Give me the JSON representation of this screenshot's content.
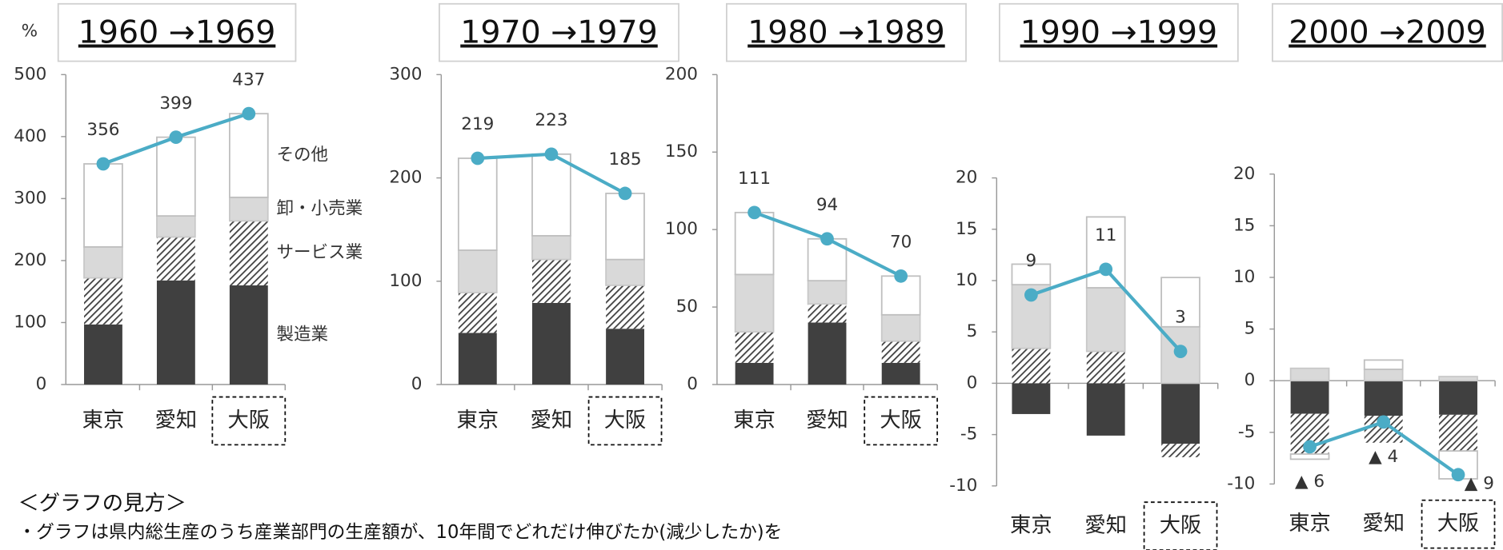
{
  "unit_label": "%",
  "notes": {
    "heading": "＜グラフの見方＞",
    "text": "・グラフは県内総生産のうち産業部門の生産額が、10年間でどれだけ伸びたか(減少したか)を"
  },
  "chart_data": [
    {
      "type": "stacked-bar-line",
      "title": "1960 →1969",
      "categories": [
        "東京",
        "愛知",
        "大阪"
      ],
      "highlight": 2,
      "ylim": [
        0,
        500
      ],
      "yticks": [
        0,
        100,
        200,
        300,
        400,
        500
      ],
      "series": [
        {
          "name": "製造業",
          "color": "#404040",
          "values": [
            97,
            168,
            160
          ]
        },
        {
          "name": "サービス業",
          "color": "#404040",
          "pattern": "hatch",
          "values": [
            75,
            70,
            104
          ]
        },
        {
          "name": "卸・小売業",
          "color": "#d9d9d9",
          "values": [
            50,
            34,
            38
          ]
        },
        {
          "name": "その他",
          "color": "#ffffff",
          "values": [
            134,
            127,
            135
          ]
        }
      ],
      "line": {
        "color": "#4bacc6",
        "values": [
          356,
          399,
          437
        ]
      }
    },
    {
      "type": "stacked-bar-line",
      "title": "1970 →1979",
      "categories": [
        "東京",
        "愛知",
        "大阪"
      ],
      "highlight": 2,
      "ylim": [
        0,
        300
      ],
      "yticks": [
        0,
        100,
        200,
        300
      ],
      "series": [
        {
          "color": "#404040",
          "values": [
            50,
            79,
            54
          ]
        },
        {
          "color": "#404040",
          "pattern": "hatch",
          "values": [
            39,
            42,
            42
          ]
        },
        {
          "color": "#d9d9d9",
          "values": [
            41,
            23,
            25
          ]
        },
        {
          "color": "#ffffff",
          "values": [
            89,
            79,
            64
          ]
        }
      ],
      "line": {
        "color": "#4bacc6",
        "values": [
          219,
          223,
          185
        ]
      }
    },
    {
      "type": "stacked-bar-line",
      "title": "1980 →1989",
      "categories": [
        "東京",
        "愛知",
        "大阪"
      ],
      "highlight": 2,
      "ylim": [
        0,
        200
      ],
      "yticks": [
        0,
        50,
        100,
        150,
        200
      ],
      "series": [
        {
          "color": "#404040",
          "values": [
            14,
            40,
            14
          ]
        },
        {
          "color": "#404040",
          "pattern": "hatch",
          "values": [
            20,
            12,
            14
          ]
        },
        {
          "color": "#d9d9d9",
          "values": [
            37,
            15,
            17
          ]
        },
        {
          "color": "#ffffff",
          "values": [
            40,
            27,
            25
          ]
        }
      ],
      "line": {
        "color": "#4bacc6",
        "values": [
          111,
          94,
          70
        ]
      }
    },
    {
      "type": "stacked-bar-line",
      "title": "1990 →1999",
      "categories": [
        "東京",
        "愛知",
        "大阪"
      ],
      "highlight": 2,
      "ylim": [
        -10,
        20
      ],
      "yticks": [
        -10,
        -5,
        0,
        5,
        10,
        15,
        20
      ],
      "series": [
        {
          "color": "#404040",
          "values": [
            -3.0,
            -5.1,
            -5.9
          ]
        },
        {
          "color": "#404040",
          "pattern": "hatch",
          "values": [
            3.4,
            3.1,
            -1.3
          ]
        },
        {
          "color": "#d9d9d9",
          "values": [
            6.2,
            6.2,
            5.5
          ]
        },
        {
          "color": "#ffffff",
          "values": [
            2.0,
            6.9,
            4.8
          ]
        }
      ],
      "line": {
        "color": "#4bacc6",
        "values": [
          8.6,
          11.1,
          3.1
        ],
        "value_labels": [
          "9",
          "11",
          "3"
        ]
      }
    },
    {
      "type": "stacked-bar-line",
      "title": "2000 →2009",
      "categories": [
        "東京",
        "愛知",
        "大阪"
      ],
      "highlight": 2,
      "ylim": [
        -10,
        20
      ],
      "yticks": [
        -10,
        -5,
        0,
        5,
        10,
        15,
        20
      ],
      "series": [
        {
          "color": "#404040",
          "values": [
            -3.2,
            -3.4,
            -3.3
          ]
        },
        {
          "color": "#404040",
          "pattern": "hatch",
          "values": [
            -3.9,
            -2.6,
            -3.5
          ]
        },
        {
          "color": "#d9d9d9",
          "values": [
            1.2,
            1.1,
            0.4
          ]
        },
        {
          "color": "#ffffff",
          "values": [
            -0.5,
            0.9,
            -2.7
          ]
        }
      ],
      "line": {
        "color": "#4bacc6",
        "values": [
          -6.4,
          -4.0,
          -9.1
        ],
        "value_labels": [
          "▲ 6",
          "▲ 4",
          "▲ 9"
        ]
      }
    }
  ]
}
